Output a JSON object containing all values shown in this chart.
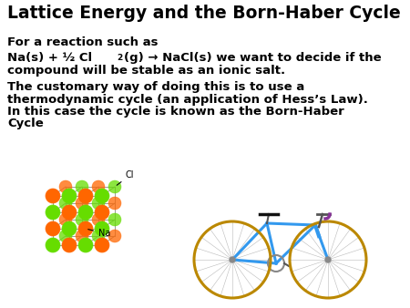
{
  "title": "Lattice Energy and the Born-Haber Cycle",
  "title_fontsize": 13.5,
  "line1": "For a reaction such as",
  "line2a": "Na(s) + ½ Cl",
  "line2_sub": "2",
  "line2b": "(g) → NaCl(s) we want to decide if the",
  "line2c": "compound will be stable as an ionic salt.",
  "line3a": "The customary way of doing this is to use a",
  "line3b": "thermodynamic cycle (an application of Hess’s Law).",
  "line3c": "In this case the cycle is known as the Born-Haber",
  "line3d": "Cycle",
  "body_fontsize": 9.5,
  "bg_color": "#ffffff",
  "text_color": "#000000",
  "nacl_orange": "#ff6600",
  "nacl_green": "#66dd00",
  "nacl_line_color": "#999999",
  "bike_frame_color": "#3399ee",
  "bike_wheel_color": "#bb8800"
}
